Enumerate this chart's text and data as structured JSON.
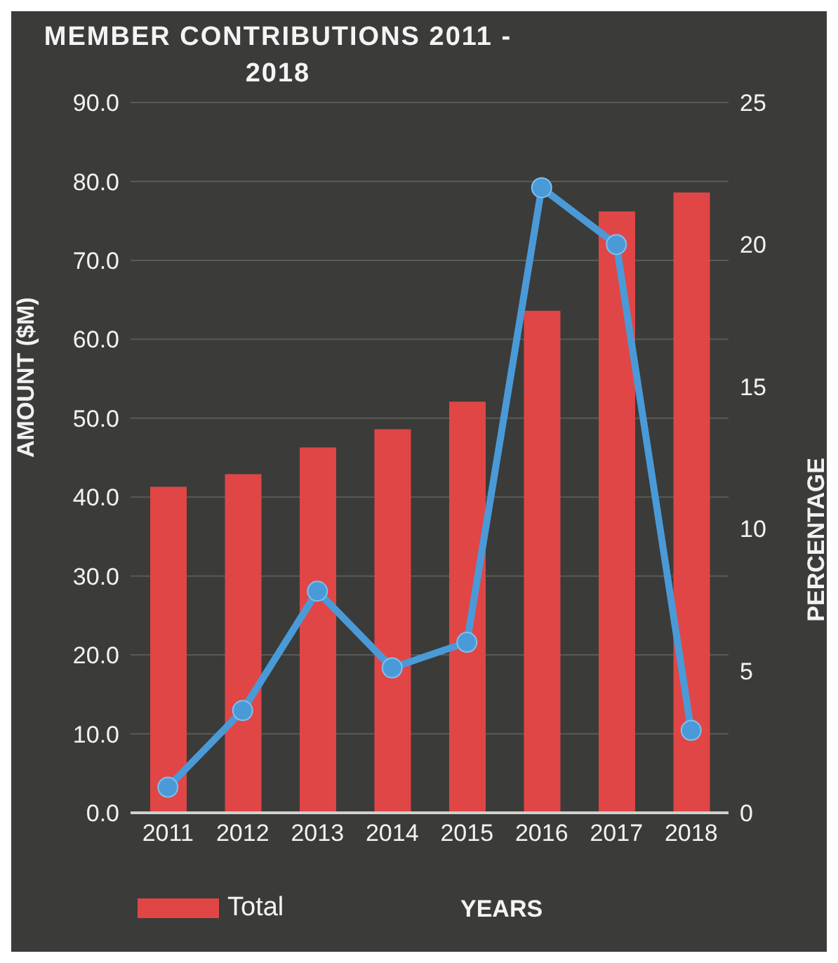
{
  "chart_data": {
    "type": "bar",
    "title": "MEMBER CONTRIBUTIONS 2011 - 2018",
    "xlabel": "YEARS",
    "ylabel": "AMOUNT ($M)",
    "y2label": "PERCENTAGE",
    "categories": [
      "2011",
      "2012",
      "2013",
      "2014",
      "2015",
      "2016",
      "2017",
      "2018"
    ],
    "series": [
      {
        "name": "Total",
        "color": "#e04646",
        "values": [
          41.3,
          42.9,
          46.3,
          48.6,
          52.1,
          63.6,
          76.2,
          78.6
        ]
      },
      {
        "type": "line",
        "axis": "y2",
        "color": "#4a9ad8",
        "values": [
          0.9,
          3.6,
          7.8,
          5.1,
          6.0,
          22.0,
          20.0,
          2.9
        ]
      }
    ],
    "ylim": [
      0,
      90
    ],
    "yticks": [
      {
        "value": 0,
        "label": "0.0"
      },
      {
        "value": 10,
        "label": "10.0"
      },
      {
        "value": 20,
        "label": "20.0"
      },
      {
        "value": 30,
        "label": "30.0"
      },
      {
        "value": 40,
        "label": "40.0"
      },
      {
        "value": 50,
        "label": "50.0"
      },
      {
        "value": 60,
        "label": "60.0"
      },
      {
        "value": 70,
        "label": "70.0"
      },
      {
        "value": 80,
        "label": "80.0"
      },
      {
        "value": 90,
        "label": "90.0"
      }
    ],
    "y2lim": [
      0,
      25
    ],
    "y2ticks": [
      0,
      5,
      10,
      15,
      20,
      25
    ],
    "grid": "y",
    "legend": "bottom left",
    "marker": "circle",
    "line_style": "solid"
  }
}
